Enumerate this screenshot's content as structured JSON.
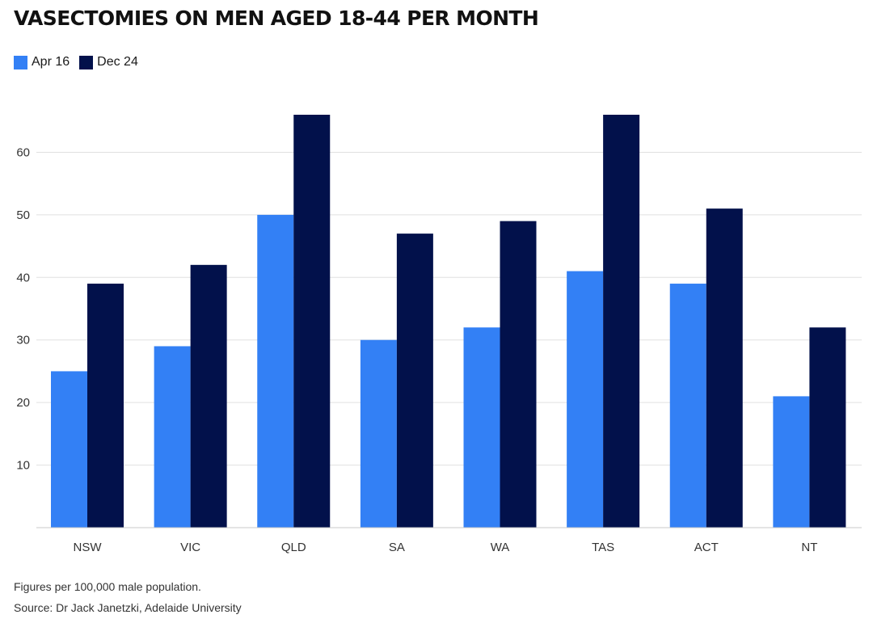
{
  "chart_data": {
    "type": "bar",
    "title": "VASECTOMIES ON MEN AGED 18-44 PER MONTH",
    "categories": [
      "NSW",
      "VIC",
      "QLD",
      "SA",
      "WA",
      "TAS",
      "ACT",
      "NT"
    ],
    "series": [
      {
        "name": "Apr 16",
        "color": "#3380f5",
        "values": [
          25,
          29,
          50,
          30,
          32,
          41,
          39,
          21
        ]
      },
      {
        "name": "Dec 24",
        "color": "#02114b",
        "values": [
          39,
          42,
          66,
          47,
          49,
          66,
          51,
          32
        ]
      }
    ],
    "ylim": [
      0,
      66
    ],
    "yticks": [
      10,
      20,
      30,
      40,
      50,
      60
    ],
    "grid": true,
    "legend_position": "top-left",
    "xlabel": "",
    "ylabel": ""
  },
  "footnote": "Figures per 100,000 male population.",
  "source": "Source: Dr Jack Janetzki, Adelaide University"
}
